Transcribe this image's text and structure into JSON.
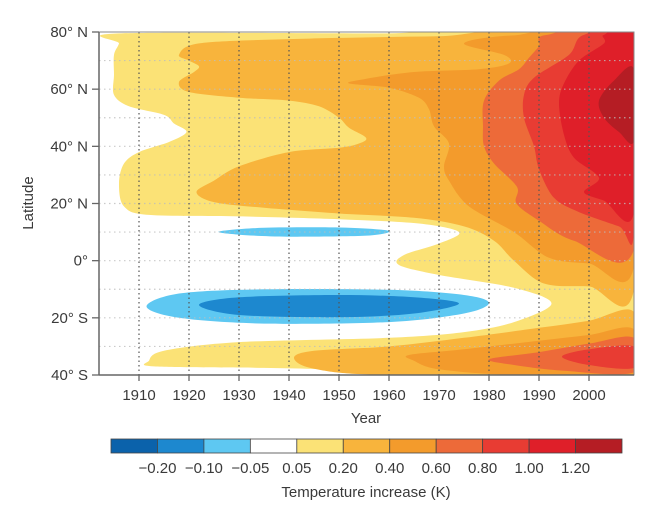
{
  "chart_data": {
    "type": "heatmap",
    "subtype": "filled-contour",
    "title": "",
    "xlabel": "Year",
    "ylabel": "Latitude",
    "xlim": [
      1902,
      2009
    ],
    "ylim": [
      -40,
      80
    ],
    "x_ticks": [
      1910,
      1920,
      1930,
      1940,
      1950,
      1960,
      1970,
      1980,
      1990,
      2000
    ],
    "x_tick_labels": [
      "1910",
      "1920",
      "1930",
      "1940",
      "1950",
      "1960",
      "1970",
      "1980",
      "1990",
      "2000"
    ],
    "y_ticks": [
      80,
      60,
      40,
      20,
      0,
      -20,
      -40
    ],
    "y_tick_labels": [
      "80° N",
      "60° N",
      "40° N",
      "20° N",
      "0°",
      "20° S",
      "40° S"
    ],
    "grid": {
      "vertical": "dotted, every decade",
      "horizontal": "dotted, every 10°"
    },
    "colorbar": {
      "title": "Temperature increase (K)",
      "placement": "bottom",
      "boundaries": [
        "−0.20",
        "−0.10",
        "−0.05",
        "0.05",
        "0.20",
        "0.40",
        "0.60",
        "0.80",
        "1.00",
        "1.20"
      ],
      "colors": [
        "#0b62ab",
        "#1d88cf",
        "#5ec8f2",
        "#ffffff",
        "#fbe276",
        "#f8b43c",
        "#f39b2c",
        "#ed6a39",
        "#e83c33",
        "#df1f29",
        "#b51d24"
      ]
    },
    "background_level": 3,
    "regions": [
      {
        "level": 4,
        "points": [
          [
            1906,
            79.5
          ],
          [
            1960,
            79.5
          ],
          [
            2009,
            79.5
          ],
          [
            2009,
            -39.5
          ],
          [
            1985,
            -39.8
          ],
          [
            1960,
            -38.5
          ],
          [
            1935,
            -37.5
          ],
          [
            1913,
            -37
          ],
          [
            1912,
            -35
          ],
          [
            1915,
            -31.5
          ],
          [
            1930,
            -28.5
          ],
          [
            1960,
            -27
          ],
          [
            1975,
            -25
          ],
          [
            1985,
            -21.5
          ],
          [
            1992.5,
            -15
          ],
          [
            1985,
            -9.5
          ],
          [
            1970,
            -5
          ],
          [
            1962,
            -1.5
          ],
          [
            1963,
            2
          ],
          [
            1970,
            6
          ],
          [
            1974,
            10
          ],
          [
            1966,
            13
          ],
          [
            1950,
            14.5
          ],
          [
            1930,
            15.5
          ],
          [
            1912,
            16
          ],
          [
            1907,
            19
          ],
          [
            1906,
            27
          ],
          [
            1907,
            34
          ],
          [
            1910,
            38
          ],
          [
            1916,
            41.5
          ],
          [
            1919.5,
            45
          ],
          [
            1917,
            48
          ],
          [
            1915,
            51
          ],
          [
            1908,
            54
          ],
          [
            1905,
            58
          ],
          [
            1905,
            65
          ],
          [
            1905,
            72
          ],
          [
            1906,
            76
          ]
        ]
      },
      {
        "level": 2,
        "points": [
          [
            1926,
            10.2
          ],
          [
            1935,
            11.5
          ],
          [
            1950,
            11.6
          ],
          [
            1958,
            10.9
          ],
          [
            1960,
            10
          ],
          [
            1955,
            8.7
          ],
          [
            1940,
            8.4
          ],
          [
            1930,
            9.1
          ]
        ]
      },
      {
        "level": 2,
        "points": [
          [
            1911.5,
            -16
          ],
          [
            1918,
            -11.5
          ],
          [
            1935,
            -10
          ],
          [
            1960,
            -10.2
          ],
          [
            1975,
            -12
          ],
          [
            1980,
            -14.8
          ],
          [
            1975,
            -18.5
          ],
          [
            1960,
            -21.5
          ],
          [
            1935,
            -22
          ],
          [
            1918,
            -20
          ]
        ]
      },
      {
        "level": 1,
        "points": [
          [
            1922,
            -15.5
          ],
          [
            1930,
            -12.8
          ],
          [
            1950,
            -12
          ],
          [
            1965,
            -12.8
          ],
          [
            1974,
            -15
          ],
          [
            1965,
            -18.5
          ],
          [
            1950,
            -19.8
          ],
          [
            1930,
            -19
          ]
        ]
      },
      {
        "level": 5,
        "points": [
          [
            1918,
            72
          ],
          [
            1922,
            76
          ],
          [
            1940,
            77.5
          ],
          [
            1970,
            78.5
          ],
          [
            2009,
            79
          ],
          [
            2009,
            -10
          ],
          [
            2000,
            -9
          ],
          [
            1991,
            -8
          ],
          [
            1985,
            0
          ],
          [
            1981,
            7
          ],
          [
            1975,
            12
          ],
          [
            1965,
            15
          ],
          [
            1950,
            16.5
          ],
          [
            1935,
            18.5
          ],
          [
            1925,
            20.5
          ],
          [
            1921.5,
            24
          ],
          [
            1925,
            28
          ],
          [
            1930,
            33
          ],
          [
            1940,
            38
          ],
          [
            1950,
            39.5
          ],
          [
            1954,
            41
          ],
          [
            1955.4,
            43
          ],
          [
            1952,
            46.5
          ],
          [
            1950,
            50
          ],
          [
            1946,
            54
          ],
          [
            1940,
            56
          ],
          [
            1930,
            57
          ],
          [
            1920,
            59
          ],
          [
            1918,
            62.5
          ],
          [
            1921,
            66
          ],
          [
            1922,
            68
          ],
          [
            1920,
            70
          ]
        ]
      },
      {
        "level": 5,
        "points": [
          [
            1941,
            -34
          ],
          [
            1945,
            -31.5
          ],
          [
            1960,
            -30
          ],
          [
            1975,
            -27
          ],
          [
            1990,
            -23.5
          ],
          [
            2000,
            -21
          ],
          [
            2009,
            -18
          ],
          [
            2009,
            -40
          ],
          [
            1960,
            -40
          ],
          [
            1945,
            -37.8
          ]
        ]
      },
      {
        "level": 6,
        "points": [
          [
            1975,
            76
          ],
          [
            1985,
            78.8
          ],
          [
            2009,
            79
          ],
          [
            2009,
            -2
          ],
          [
            2000,
            -1
          ],
          [
            1992,
            1
          ],
          [
            1985,
            10
          ],
          [
            1976,
            19
          ],
          [
            1972,
            28
          ],
          [
            1971,
            33
          ],
          [
            1972,
            41
          ],
          [
            1969,
            47
          ],
          [
            1968,
            53
          ],
          [
            1966,
            57
          ],
          [
            1960,
            60.5
          ],
          [
            1952,
            62
          ],
          [
            1955,
            63.5
          ],
          [
            1965,
            66
          ],
          [
            1978,
            67
          ],
          [
            1984,
            69
          ],
          [
            1983,
            72
          ]
        ]
      },
      {
        "level": 6,
        "points": [
          [
            1964,
            -33
          ],
          [
            1975,
            -31
          ],
          [
            1990,
            -28
          ],
          [
            2000,
            -26
          ],
          [
            2009,
            -24
          ],
          [
            2009,
            -40
          ],
          [
            1985,
            -40
          ],
          [
            1970,
            -38
          ],
          [
            1965,
            -35
          ]
        ]
      },
      {
        "level": 7,
        "points": [
          [
            1991.6,
            79
          ],
          [
            2009,
            79
          ],
          [
            2009,
            4
          ],
          [
            1997,
            7
          ],
          [
            1990,
            14
          ],
          [
            1985.5,
            20
          ],
          [
            1985.6,
            25.8
          ],
          [
            1981,
            34
          ],
          [
            1979,
            40
          ],
          [
            1978.8,
            47
          ],
          [
            1979,
            56
          ],
          [
            1982,
            63
          ],
          [
            1986,
            67
          ],
          [
            1988,
            71
          ],
          [
            1990,
            75
          ]
        ]
      },
      {
        "level": 7,
        "points": [
          [
            1980,
            -34.5
          ],
          [
            1990,
            -32
          ],
          [
            2000,
            -29
          ],
          [
            2009,
            -27
          ],
          [
            2009,
            -39
          ],
          [
            1995,
            -38.5
          ],
          [
            1985,
            -36.5
          ]
        ]
      },
      {
        "level": 8,
        "points": [
          [
            1999,
            79
          ],
          [
            2009,
            79
          ],
          [
            2009,
            10
          ],
          [
            2006,
            12
          ],
          [
            1998,
            17
          ],
          [
            1993,
            22
          ],
          [
            1990,
            32
          ],
          [
            1989,
            40
          ],
          [
            1987,
            50
          ],
          [
            1987,
            58
          ],
          [
            1989,
            64
          ],
          [
            1996,
            72
          ]
        ]
      },
      {
        "level": 8,
        "points": [
          [
            1994.6,
            -33.6
          ],
          [
            2000,
            -31
          ],
          [
            2009,
            -30
          ],
          [
            2009,
            -37.5
          ],
          [
            2000,
            -36.5
          ]
        ]
      },
      {
        "level": 9,
        "points": [
          [
            2003,
            79
          ],
          [
            2009,
            79
          ],
          [
            2009,
            17
          ],
          [
            2003,
            21
          ],
          [
            1999,
            24
          ],
          [
            2002,
            29
          ],
          [
            1997,
            36
          ],
          [
            1995,
            44
          ],
          [
            1994,
            55
          ],
          [
            1995,
            62
          ],
          [
            1998,
            70
          ],
          [
            2003,
            76
          ]
        ]
      },
      {
        "level": 10,
        "points": [
          [
            2009,
            67
          ],
          [
            2005,
            63
          ],
          [
            2002,
            56
          ],
          [
            2003,
            50
          ],
          [
            2006,
            45
          ],
          [
            2009,
            42
          ]
        ]
      }
    ]
  }
}
